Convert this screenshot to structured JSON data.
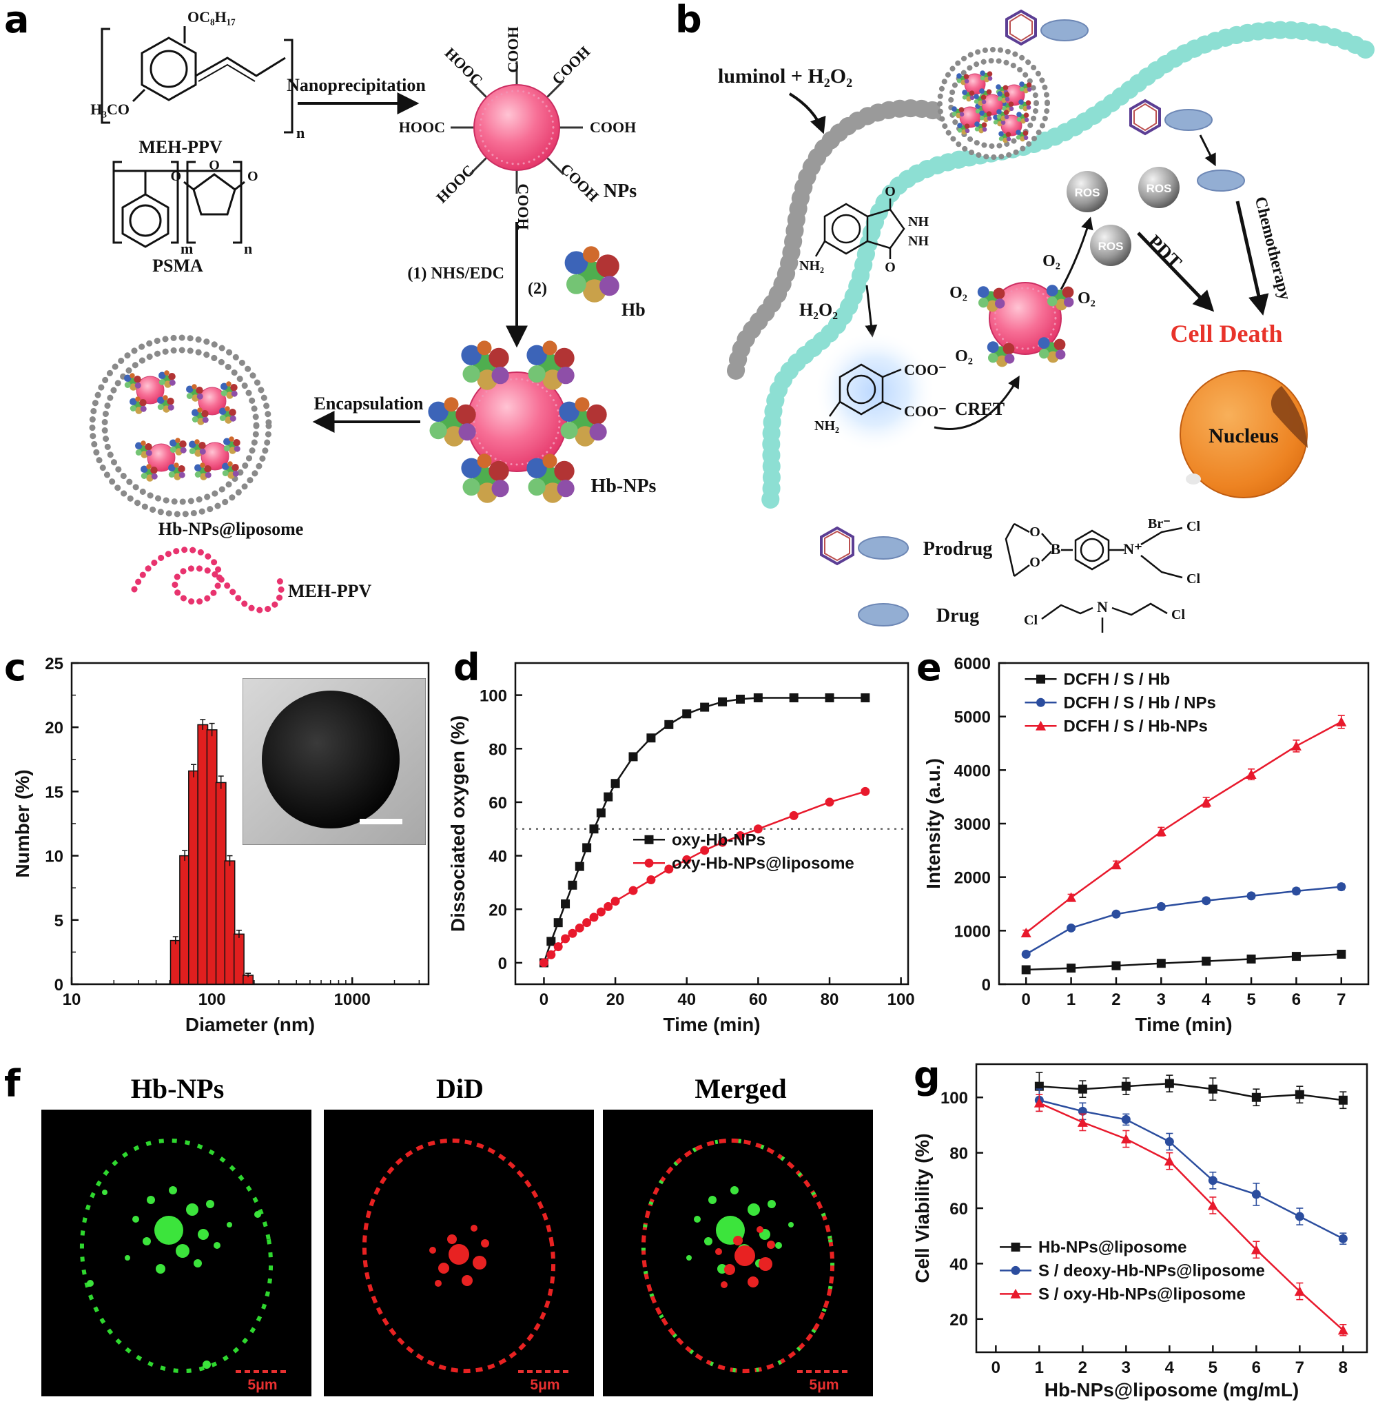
{
  "figure": {
    "panel_labels": [
      "a",
      "b",
      "c",
      "d",
      "e",
      "f",
      "g"
    ]
  },
  "a": {
    "oc8h17": "OC₈H₁₇",
    "h3co": "H₃CO",
    "meh_ppv_name": "MEH-PPV",
    "psma_name": "PSMA",
    "m_sub": "m",
    "n_sub": "n",
    "nanoprecipitation": "Nanoprecipitation",
    "cooh": [
      "COOH",
      "COOH",
      "COOH",
      "COOH",
      "COOH",
      "HOOC",
      "HOOC",
      "HOOC"
    ],
    "nps": "NPs",
    "step1": "(1) NHS/EDC",
    "step2": "(2)",
    "hb": "Hb",
    "hb_nps": "Hb-NPs",
    "encapsulation": "Encapsulation",
    "liposome_label": "Hb-NPs@liposome",
    "chain_label": "MEH-PPV"
  },
  "b": {
    "luminol_h2o2": "luminol + H₂O₂",
    "ros": "ROS",
    "o2": "O₂",
    "h2o2": "H₂O₂",
    "cret": "CRET",
    "pdt": "PDT",
    "chemotherapy": "Chemotherapy",
    "cell_death": "Cell Death",
    "nucleus": "Nucleus",
    "prodrug": "Prodrug",
    "drug": "Drug",
    "nh": "NH",
    "nh2": "NH₂",
    "coo_minus": "COO⁻",
    "o_atom": "O",
    "b_atom": "B",
    "n_plus": "N⁺",
    "n_atom": "N",
    "br_minus": "Br⁻",
    "cl": "Cl"
  },
  "f": {
    "titles": [
      "Hb-NPs",
      "DiD",
      "Merged"
    ],
    "scale_label": "5μm"
  },
  "chart_data": {
    "c": {
      "type": "bar",
      "xlabel": "Diameter (nm)",
      "ylabel": "Number (%)",
      "xscale": "log",
      "xlim": [
        10,
        3500
      ],
      "ylim": [
        0,
        25
      ],
      "xticks": [
        10,
        100,
        1000
      ],
      "yticks": [
        0,
        5,
        10,
        15,
        20,
        25
      ],
      "bar_color": "#e01f1f",
      "bars": [
        {
          "x": 55,
          "y": 3.4,
          "err": 0.3
        },
        {
          "x": 64,
          "y": 10.0,
          "err": 0.4
        },
        {
          "x": 74,
          "y": 16.6,
          "err": 0.5
        },
        {
          "x": 86,
          "y": 20.2,
          "err": 0.4
        },
        {
          "x": 100,
          "y": 19.8,
          "err": 0.5
        },
        {
          "x": 116,
          "y": 15.7,
          "err": 0.5
        },
        {
          "x": 134,
          "y": 9.6,
          "err": 0.4
        },
        {
          "x": 156,
          "y": 3.9,
          "err": 0.3
        },
        {
          "x": 181,
          "y": 0.7,
          "err": 0.15
        }
      ],
      "inset": "TEM image of a single dark spherical nanoparticle with white scale bar"
    },
    "d": {
      "type": "line",
      "xlabel": "Time (min)",
      "ylabel": "Dissociated oxygen (%)",
      "xlim": [
        -8,
        102
      ],
      "ylim": [
        -8,
        112
      ],
      "xticks": [
        0,
        20,
        40,
        60,
        80,
        100
      ],
      "yticks": [
        0,
        20,
        40,
        60,
        80,
        100
      ],
      "hline": 50,
      "legend": {
        "fx": 0.3,
        "fy": 0.55
      },
      "series": [
        {
          "name": "oxy-Hb-NPs",
          "color": "#141414",
          "marker": "square",
          "x": [
            0,
            2,
            4,
            6,
            8,
            10,
            12,
            14,
            16,
            18,
            20,
            25,
            30,
            35,
            40,
            45,
            50,
            55,
            60,
            70,
            80,
            90
          ],
          "y": [
            0,
            8,
            15,
            22,
            29,
            36,
            43,
            50,
            56,
            62,
            67,
            77,
            84,
            89,
            93,
            95.5,
            97.5,
            98.5,
            99,
            99,
            99,
            99
          ]
        },
        {
          "name": "oxy-Hb-NPs@liposome",
          "color": "#e8192c",
          "marker": "circle",
          "x": [
            0,
            2,
            4,
            6,
            8,
            10,
            12,
            14,
            16,
            18,
            20,
            25,
            30,
            35,
            40,
            45,
            50,
            55,
            60,
            70,
            80,
            90
          ],
          "y": [
            0,
            3,
            6,
            9,
            11,
            13,
            15,
            17,
            19,
            21,
            23,
            27,
            31,
            35,
            38.5,
            42,
            45,
            47.5,
            50,
            55,
            60,
            64
          ]
        }
      ]
    },
    "e": {
      "type": "line",
      "xlabel": "Time (min)",
      "ylabel": "Intensity (a.u.)",
      "xlim": [
        -0.6,
        7.6
      ],
      "ylim": [
        0,
        6000
      ],
      "xticks": [
        0,
        1,
        2,
        3,
        4,
        5,
        6,
        7
      ],
      "yticks": [
        0,
        1000,
        2000,
        3000,
        4000,
        5000,
        6000
      ],
      "legend": {
        "fx": 0.07,
        "fy": 0.05
      },
      "series": [
        {
          "name": "DCFH / S / Hb",
          "color": "#141414",
          "marker": "square",
          "x": [
            0,
            1,
            2,
            3,
            4,
            5,
            6,
            7
          ],
          "y": [
            270,
            300,
            345,
            390,
            430,
            470,
            520,
            560
          ],
          "err": [
            25,
            25,
            30,
            30,
            30,
            30,
            35,
            35
          ]
        },
        {
          "name": "DCFH / S / Hb / NPs",
          "color": "#2b4d9e",
          "marker": "circle",
          "x": [
            0,
            1,
            2,
            3,
            4,
            5,
            6,
            7
          ],
          "y": [
            560,
            1050,
            1310,
            1450,
            1560,
            1650,
            1740,
            1820
          ],
          "err": [
            40,
            45,
            45,
            50,
            50,
            50,
            55,
            55
          ]
        },
        {
          "name": "DCFH / S / Hb-NPs",
          "color": "#e8192c",
          "marker": "triangle",
          "x": [
            0,
            1,
            2,
            3,
            4,
            5,
            6,
            7
          ],
          "y": [
            960,
            1620,
            2230,
            2850,
            3400,
            3920,
            4450,
            4900
          ],
          "err": [
            50,
            60,
            70,
            80,
            90,
            100,
            110,
            120
          ]
        }
      ]
    },
    "g": {
      "type": "line",
      "xlabel": "Hb-NPs@liposome (mg/mL)",
      "ylabel": "Cell Viability (%)",
      "xlim": [
        -0.45,
        8.55
      ],
      "ylim": [
        8,
        112
      ],
      "xticks": [
        0,
        1,
        2,
        3,
        4,
        5,
        6,
        7,
        8
      ],
      "yticks": [
        20,
        40,
        60,
        80,
        100
      ],
      "legend": {
        "fx": 0.06,
        "fy": 0.635
      },
      "series": [
        {
          "name": "Hb-NPs@liposome",
          "color": "#141414",
          "marker": "square",
          "x": [
            1,
            2,
            3,
            4,
            5,
            6,
            7,
            8
          ],
          "y": [
            104,
            103,
            104,
            105,
            103,
            100,
            101,
            99
          ],
          "err": [
            5,
            3,
            3,
            3,
            4,
            3,
            3,
            3
          ]
        },
        {
          "name": "S / deoxy-Hb-NPs@liposome",
          "color": "#2b4d9e",
          "marker": "circle",
          "x": [
            1,
            2,
            3,
            4,
            5,
            6,
            7,
            8
          ],
          "y": [
            99,
            95,
            92,
            84,
            70,
            65,
            57,
            49
          ],
          "err": [
            4,
            3,
            2,
            3,
            3,
            4,
            3,
            2
          ]
        },
        {
          "name": "S / oxy-Hb-NPs@liposome",
          "color": "#e8192c",
          "marker": "triangle",
          "x": [
            1,
            2,
            3,
            4,
            5,
            6,
            7,
            8
          ],
          "y": [
            98,
            91,
            85,
            77,
            61,
            45,
            30,
            16
          ],
          "err": [
            3,
            3,
            3,
            3,
            3,
            3,
            3,
            2
          ]
        }
      ]
    }
  }
}
